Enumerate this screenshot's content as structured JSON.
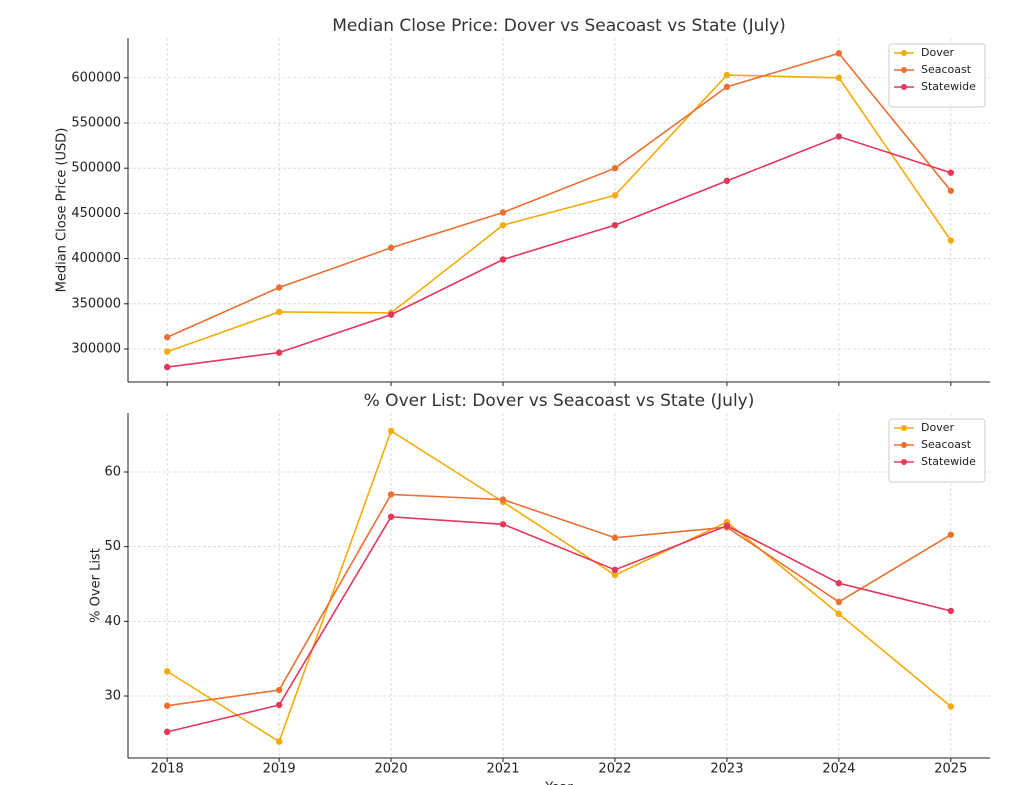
{
  "chart_data": [
    {
      "type": "line",
      "title": "Median Close Price: Dover vs Seacoast vs State (July)",
      "y_label": "Median Close Price (USD)",
      "x": [
        2018,
        2019,
        2020,
        2021,
        2022,
        2023,
        2024,
        2025
      ],
      "series": [
        {
          "name": "Dover",
          "color": "#f5ab0a",
          "values": [
            297000,
            341000,
            340000,
            437000,
            470000,
            603000,
            600000,
            420000
          ]
        },
        {
          "name": "Seacoast",
          "color": "#ec6f2f",
          "values": [
            313000,
            368000,
            412000,
            451000,
            500000,
            590000,
            627000,
            475000
          ]
        },
        {
          "name": "Statewide",
          "color": "#e5365b",
          "values": [
            280000,
            296000,
            338000,
            399000,
            437000,
            486000,
            535000,
            495000
          ]
        }
      ],
      "xlim": [
        2017.65,
        2025.35
      ],
      "xticks": [
        2018,
        2019,
        2020,
        2021,
        2022,
        2023,
        2024,
        2025
      ],
      "ylim": [
        263500,
        644000
      ],
      "yticks": [
        300000,
        350000,
        400000,
        450000,
        500000,
        550000,
        600000
      ],
      "grid": true,
      "legend": "upper right"
    },
    {
      "type": "line",
      "title": "% Over List: Dover vs Seacoast vs State (July)",
      "y_label": "% Over List",
      "x_label": "Year",
      "x": [
        2018,
        2019,
        2020,
        2021,
        2022,
        2023,
        2024,
        2025
      ],
      "series": [
        {
          "name": "Dover",
          "color": "#f5ab0a",
          "values": [
            33.3,
            23.9,
            65.5,
            56.0,
            46.2,
            53.3,
            41.0,
            28.6
          ]
        },
        {
          "name": "Seacoast",
          "color": "#ec6f2f",
          "values": [
            28.7,
            30.8,
            57.0,
            56.3,
            51.2,
            52.6,
            42.6,
            51.6
          ]
        },
        {
          "name": "Statewide",
          "color": "#e5365b",
          "values": [
            25.2,
            28.8,
            54.0,
            53.0,
            46.9,
            52.8,
            45.1,
            41.4
          ]
        }
      ],
      "xlim": [
        2017.65,
        2025.35
      ],
      "xticks": [
        2018,
        2019,
        2020,
        2021,
        2022,
        2023,
        2024,
        2025
      ],
      "ylim": [
        21.7,
        67.9
      ],
      "yticks": [
        30,
        40,
        50,
        60
      ],
      "grid": true,
      "legend": "upper right"
    }
  ]
}
